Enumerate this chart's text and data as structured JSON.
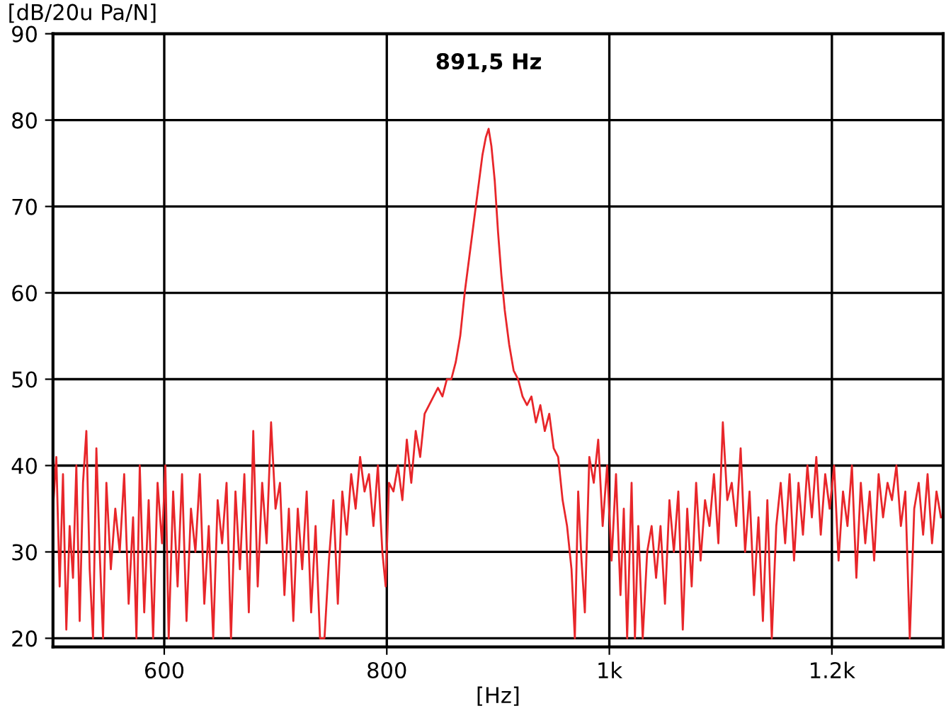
{
  "chart_data": {
    "type": "line",
    "xlabel": "[Hz]",
    "ylabel": "[dB/20u Pa/N]",
    "annotations": [
      {
        "text": "891,5 Hz",
        "x": 891.5,
        "y": 79
      }
    ],
    "x": [
      500,
      503,
      506,
      509,
      512,
      515,
      518,
      521,
      524,
      527,
      530,
      533,
      536,
      539,
      542,
      545,
      548,
      552,
      556,
      560,
      564,
      568,
      572,
      575,
      578,
      582,
      586,
      590,
      594,
      598,
      601,
      604,
      608,
      612,
      616,
      620,
      624,
      628,
      632,
      636,
      640,
      644,
      648,
      652,
      656,
      660,
      664,
      668,
      672,
      676,
      680,
      684,
      688,
      692,
      696,
      700,
      704,
      708,
      712,
      716,
      720,
      724,
      728,
      732,
      736,
      740,
      744,
      748,
      752,
      756,
      760,
      764,
      768,
      772,
      776,
      780,
      784,
      788,
      792,
      796,
      799,
      802,
      806,
      810,
      814,
      818,
      822,
      826,
      830,
      834,
      838,
      842,
      846,
      850,
      854,
      858,
      862,
      866,
      870,
      874,
      878,
      882,
      886,
      889,
      891.5,
      894,
      897,
      900,
      903,
      906,
      910,
      914,
      918,
      922,
      926,
      930,
      934,
      938,
      942,
      946,
      950,
      954,
      958,
      962,
      966,
      969,
      972,
      975,
      978,
      982,
      986,
      990,
      994,
      998,
      1002,
      1006,
      1010,
      1013,
      1016,
      1020,
      1023,
      1026,
      1030,
      1034,
      1038,
      1042,
      1046,
      1050,
      1054,
      1058,
      1062,
      1066,
      1070,
      1074,
      1078,
      1082,
      1086,
      1090,
      1094,
      1098,
      1102,
      1106,
      1110,
      1114,
      1118,
      1122,
      1126,
      1130,
      1134,
      1138,
      1142,
      1146,
      1150,
      1154,
      1158,
      1162,
      1166,
      1170,
      1174,
      1178,
      1182,
      1186,
      1190,
      1194,
      1198,
      1202,
      1206,
      1210,
      1214,
      1218,
      1222,
      1226,
      1230,
      1234,
      1238,
      1242,
      1246,
      1250,
      1254,
      1258,
      1262,
      1266,
      1270,
      1274,
      1278,
      1282,
      1286,
      1290,
      1294,
      1298
    ],
    "series": [
      {
        "color": "#e8262a",
        "values": [
          35,
          41,
          26,
          39,
          21,
          33,
          27,
          40,
          22,
          38,
          44,
          28,
          20,
          42,
          30,
          20,
          38,
          28,
          35,
          30,
          39,
          24,
          34,
          20,
          40,
          23,
          36,
          20,
          38,
          31,
          40,
          20,
          37,
          26,
          39,
          22,
          35,
          30,
          39,
          24,
          33,
          20,
          36,
          31,
          38,
          20,
          37,
          28,
          39,
          23,
          44,
          26,
          38,
          31,
          45,
          35,
          38,
          25,
          35,
          22,
          35,
          28,
          37,
          23,
          33,
          20,
          20,
          29,
          36,
          24,
          37,
          32,
          39,
          35,
          41,
          37,
          39,
          33,
          40,
          30,
          26,
          38,
          37,
          40,
          36,
          43,
          38,
          44,
          41,
          46,
          47,
          48,
          49,
          48,
          50,
          50,
          52,
          55,
          60,
          64,
          68,
          72,
          76,
          78,
          79,
          77,
          73,
          67,
          62,
          58,
          54,
          51,
          50,
          48,
          47,
          48,
          45,
          47,
          44,
          46,
          42,
          41,
          36,
          33,
          28,
          20,
          37,
          29,
          23,
          41,
          38,
          43,
          33,
          40,
          29,
          39,
          25,
          35,
          20,
          38,
          20,
          33,
          20,
          30,
          33,
          27,
          33,
          24,
          36,
          30,
          37,
          21,
          35,
          26,
          38,
          29,
          36,
          33,
          39,
          31,
          45,
          36,
          38,
          33,
          42,
          30,
          37,
          25,
          34,
          22,
          36,
          20,
          33,
          38,
          31,
          39,
          29,
          38,
          32,
          40,
          34,
          41,
          32,
          39,
          35,
          40,
          29,
          37,
          33,
          40,
          27,
          38,
          31,
          37,
          29,
          39,
          34,
          38,
          36,
          40,
          33,
          37,
          20,
          35,
          38,
          32,
          39,
          31,
          37,
          34
        ]
      }
    ],
    "xlim": [
      500,
      1300
    ],
    "ylim": [
      19,
      90
    ],
    "xticks": [
      600,
      800,
      {
        "value": 1000,
        "label": "1k"
      },
      {
        "value": 1200,
        "label": "1.2k"
      }
    ],
    "yticks": [
      20,
      30,
      40,
      50,
      60,
      70,
      80,
      90
    ],
    "grid": true,
    "marker": "none",
    "line_style": "solid"
  }
}
